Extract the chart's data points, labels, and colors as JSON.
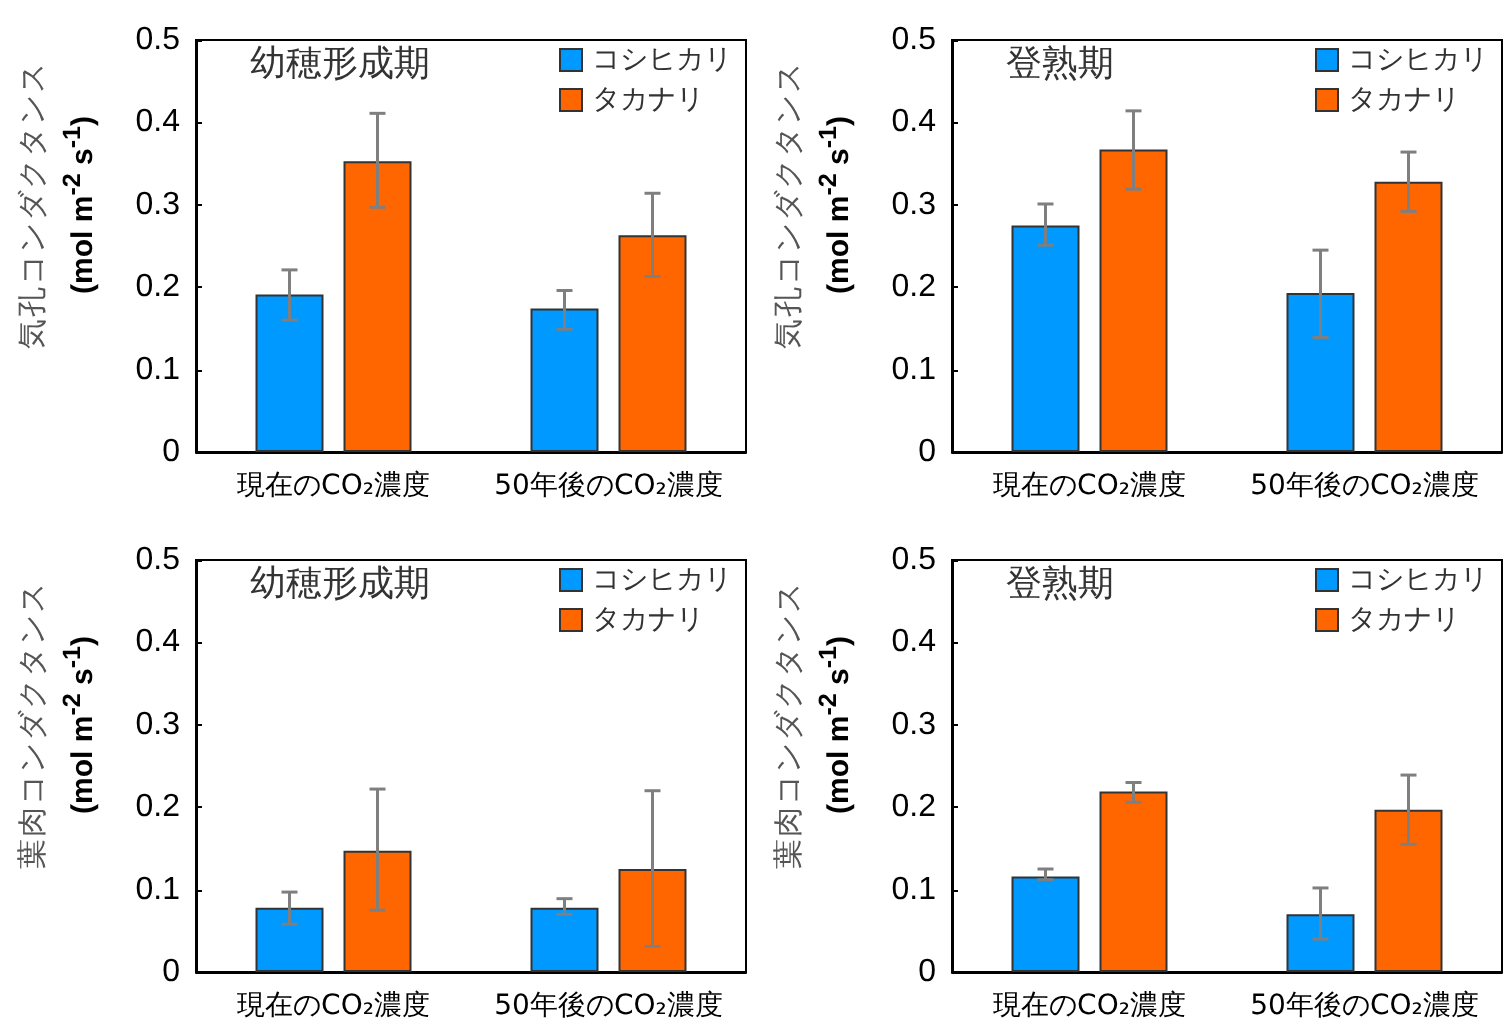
{
  "chart_data": [
    {
      "type": "bar",
      "title": "幼穂形成期",
      "ylabel": "気孔コンダクタンス\n(mol m$^{-2}$ s$^{-1}$)",
      "categories": [
        "現在のCO₂濃度",
        "50年後のCO₂濃度"
      ],
      "series": [
        {
          "name": "コシヒカリ",
          "color": "#0099ff",
          "values": [
            0.191,
            0.174
          ],
          "errors": [
            [
              0.16,
              0.221
            ],
            [
              0.149,
              0.196
            ]
          ]
        },
        {
          "name": "タカナリ",
          "color": "#ff6600",
          "values": [
            0.353,
            0.263
          ],
          "errors": [
            [
              0.297,
              0.411
            ],
            [
              0.213,
              0.314
            ]
          ]
        }
      ],
      "ylim": [
        0,
        0.5
      ],
      "yticks": [
        0,
        0.1,
        0.2,
        0.3,
        0.4,
        0.5
      ],
      "grid": false,
      "legend": "top right"
    },
    {
      "type": "bar",
      "title": "登熟期",
      "ylabel": "気孔コンダクタンス\n(mol m$^{-2}$ s$^{-1}$)",
      "categories": [
        "現在のCO₂濃度",
        "50年後のCO₂濃度"
      ],
      "series": [
        {
          "name": "コシヒカリ",
          "color": "#0099ff",
          "values": [
            0.275,
            0.193
          ],
          "errors": [
            [
              0.251,
              0.301
            ],
            [
              0.139,
              0.245
            ]
          ]
        },
        {
          "name": "タカナリ",
          "color": "#ff6600",
          "values": [
            0.367,
            0.328
          ],
          "errors": [
            [
              0.319,
              0.414
            ],
            [
              0.292,
              0.364
            ]
          ]
        }
      ],
      "ylim": [
        0,
        0.5
      ],
      "yticks": [
        0,
        0.1,
        0.2,
        0.3,
        0.4,
        0.5
      ],
      "grid": false,
      "legend": "top right"
    },
    {
      "type": "bar",
      "title": "幼穂形成期",
      "ylabel": "葉肉コンダクタンス\n(mol m$^{-2}$ s$^{-1}$)",
      "categories": [
        "現在のCO₂濃度",
        "50年後のCO₂濃度"
      ],
      "series": [
        {
          "name": "コシヒカリ",
          "color": "#0099ff",
          "values": [
            0.078,
            0.078
          ],
          "errors": [
            [
              0.058,
              0.097
            ],
            [
              0.07,
              0.089
            ]
          ]
        },
        {
          "name": "タカナリ",
          "color": "#ff6600",
          "values": [
            0.147,
            0.125
          ],
          "errors": [
            [
              0.075,
              0.222
            ],
            [
              0.031,
              0.22
            ]
          ]
        }
      ],
      "ylim": [
        0,
        0.5
      ],
      "yticks": [
        0,
        0.1,
        0.2,
        0.3,
        0.4,
        0.5
      ],
      "grid": false,
      "legend": "top right"
    },
    {
      "type": "bar",
      "title": "登熟期",
      "ylabel": "葉肉コンダクタンス\n(mol m$^{-2}$ s$^{-1}$)",
      "categories": [
        "現在のCO₂濃度",
        "50年後のCO₂濃度"
      ],
      "series": [
        {
          "name": "コシヒカリ",
          "color": "#0099ff",
          "values": [
            0.116,
            0.07
          ],
          "errors": [
            [
              0.112,
              0.125
            ],
            [
              0.04,
              0.102
            ]
          ]
        },
        {
          "name": "タカナリ",
          "color": "#ff6600",
          "values": [
            0.219,
            0.197
          ],
          "errors": [
            [
              0.206,
              0.23
            ],
            [
              0.155,
              0.239
            ]
          ]
        }
      ],
      "ylim": [
        0,
        0.5
      ],
      "yticks": [
        0,
        0.1,
        0.2,
        0.3,
        0.4,
        0.5
      ],
      "grid": false,
      "legend": "top right"
    }
  ]
}
